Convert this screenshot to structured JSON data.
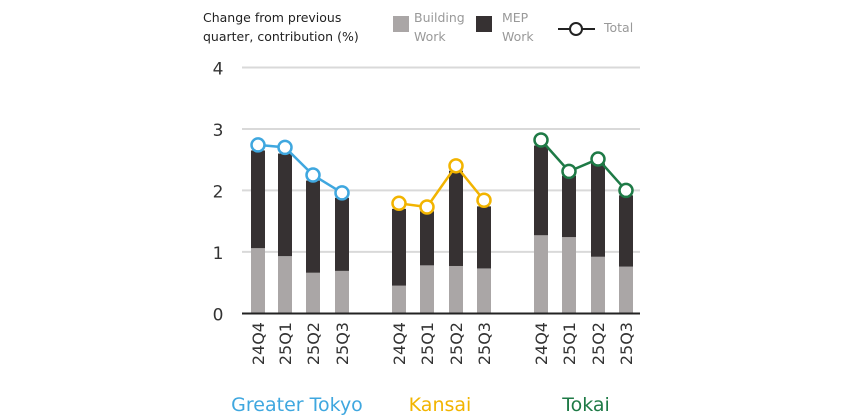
{
  "chart_data": {
    "type": "bar",
    "stacked": true,
    "title": "Change from previous quarter, contribution (%)",
    "title_lines": [
      "Change from previous",
      "quarter, contribution (%)"
    ],
    "ylim": [
      0,
      4
    ],
    "yticks": [
      "0",
      "1",
      "2",
      "3",
      "4"
    ],
    "grid": true,
    "legend_placement": "top-right",
    "legend": {
      "building": [
        "Building",
        "Work"
      ],
      "mep": [
        "MEP",
        "Work"
      ],
      "total": "Total"
    },
    "colors": {
      "building": "#aaa6a6",
      "mep": "#363132",
      "grid": "#d9d9d9",
      "axis": "#222222"
    },
    "groups": [
      {
        "name": "Greater Tokyo",
        "color": "#3fa7df",
        "categories": [
          "24Q4",
          "25Q1",
          "25Q2",
          "25Q3"
        ],
        "building": [
          1.06,
          0.93,
          0.66,
          0.69
        ],
        "mep": [
          1.59,
          1.67,
          1.5,
          1.19
        ],
        "total": [
          2.74,
          2.7,
          2.25,
          1.96
        ]
      },
      {
        "name": "Kansai",
        "color": "#f2b400",
        "categories": [
          "24Q4",
          "25Q1",
          "25Q2",
          "25Q3"
        ],
        "building": [
          0.45,
          0.78,
          0.77,
          0.73
        ],
        "mep": [
          1.25,
          0.88,
          1.55,
          1.01
        ],
        "total": [
          1.79,
          1.73,
          2.4,
          1.84
        ]
      },
      {
        "name": "Tokai",
        "color": "#1e7a46",
        "categories": [
          "24Q4",
          "25Q1",
          "25Q2",
          "25Q3"
        ],
        "building": [
          1.27,
          1.24,
          0.92,
          0.76
        ],
        "mep": [
          1.46,
          1.0,
          1.52,
          1.16
        ],
        "total": [
          2.82,
          2.31,
          2.51,
          2.0
        ]
      }
    ]
  }
}
